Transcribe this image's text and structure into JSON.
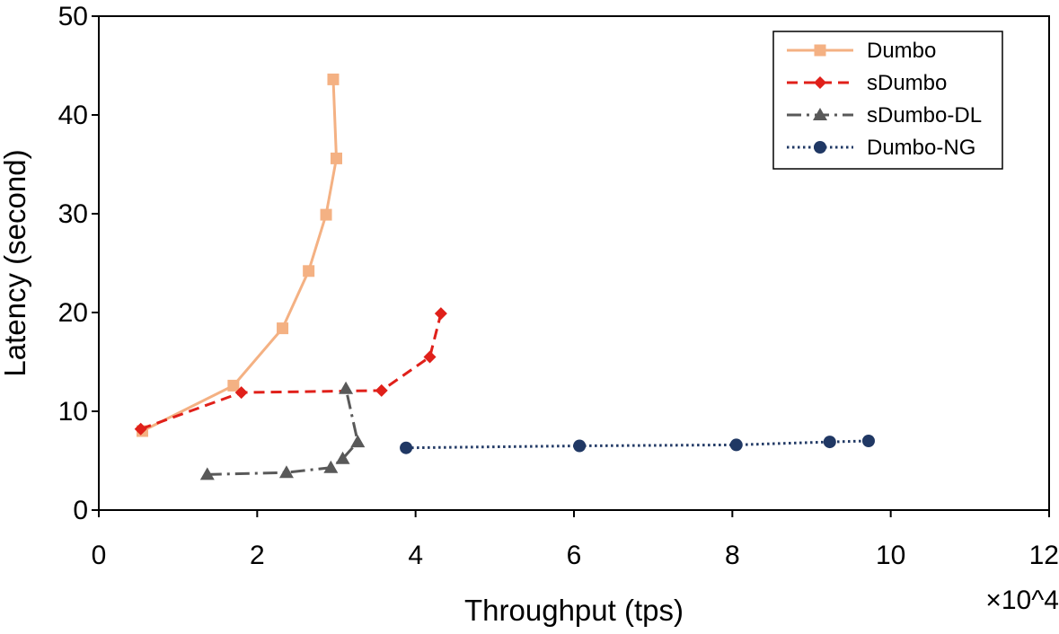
{
  "chart_data": {
    "type": "line",
    "title": "",
    "xlabel": "Throughput (tps)",
    "ylabel": "Latency (second)",
    "x_multiplier_label": "×10^4",
    "xlim": [
      0,
      12
    ],
    "ylim": [
      0,
      50
    ],
    "xticks": [
      0,
      2,
      4,
      6,
      8,
      10,
      12
    ],
    "yticks": [
      0,
      10,
      20,
      30,
      40,
      50
    ],
    "grid": false,
    "legend_position": "top-right",
    "series": [
      {
        "name": "Dumbo",
        "color": "#F4B183",
        "line_style": "solid",
        "marker": "square",
        "points": [
          [
            0.55,
            8.0
          ],
          [
            1.7,
            12.6
          ],
          [
            2.32,
            18.4
          ],
          [
            2.65,
            24.2
          ],
          [
            2.87,
            29.9
          ],
          [
            3.0,
            35.6
          ],
          [
            2.96,
            43.6
          ]
        ]
      },
      {
        "name": "sDumbo",
        "color": "#E0201A",
        "line_style": "dashed",
        "marker": "diamond",
        "points": [
          [
            0.53,
            8.2
          ],
          [
            1.8,
            11.9
          ],
          [
            3.57,
            12.1
          ],
          [
            4.18,
            15.5
          ],
          [
            4.32,
            19.9
          ]
        ]
      },
      {
        "name": "sDumbo-DL",
        "color": "#595959",
        "line_style": "dashdot",
        "marker": "triangle",
        "points": [
          [
            1.37,
            3.6
          ],
          [
            2.37,
            3.8
          ],
          [
            2.93,
            4.3
          ],
          [
            3.08,
            5.2
          ],
          [
            3.27,
            6.9
          ],
          [
            3.12,
            12.3
          ]
        ]
      },
      {
        "name": "Dumbo-NG",
        "color": "#203864",
        "line_style": "dotted",
        "marker": "circle",
        "points": [
          [
            3.88,
            6.3
          ],
          [
            6.07,
            6.5
          ],
          [
            8.05,
            6.6
          ],
          [
            9.23,
            6.9
          ],
          [
            9.72,
            7.0
          ]
        ]
      }
    ]
  }
}
